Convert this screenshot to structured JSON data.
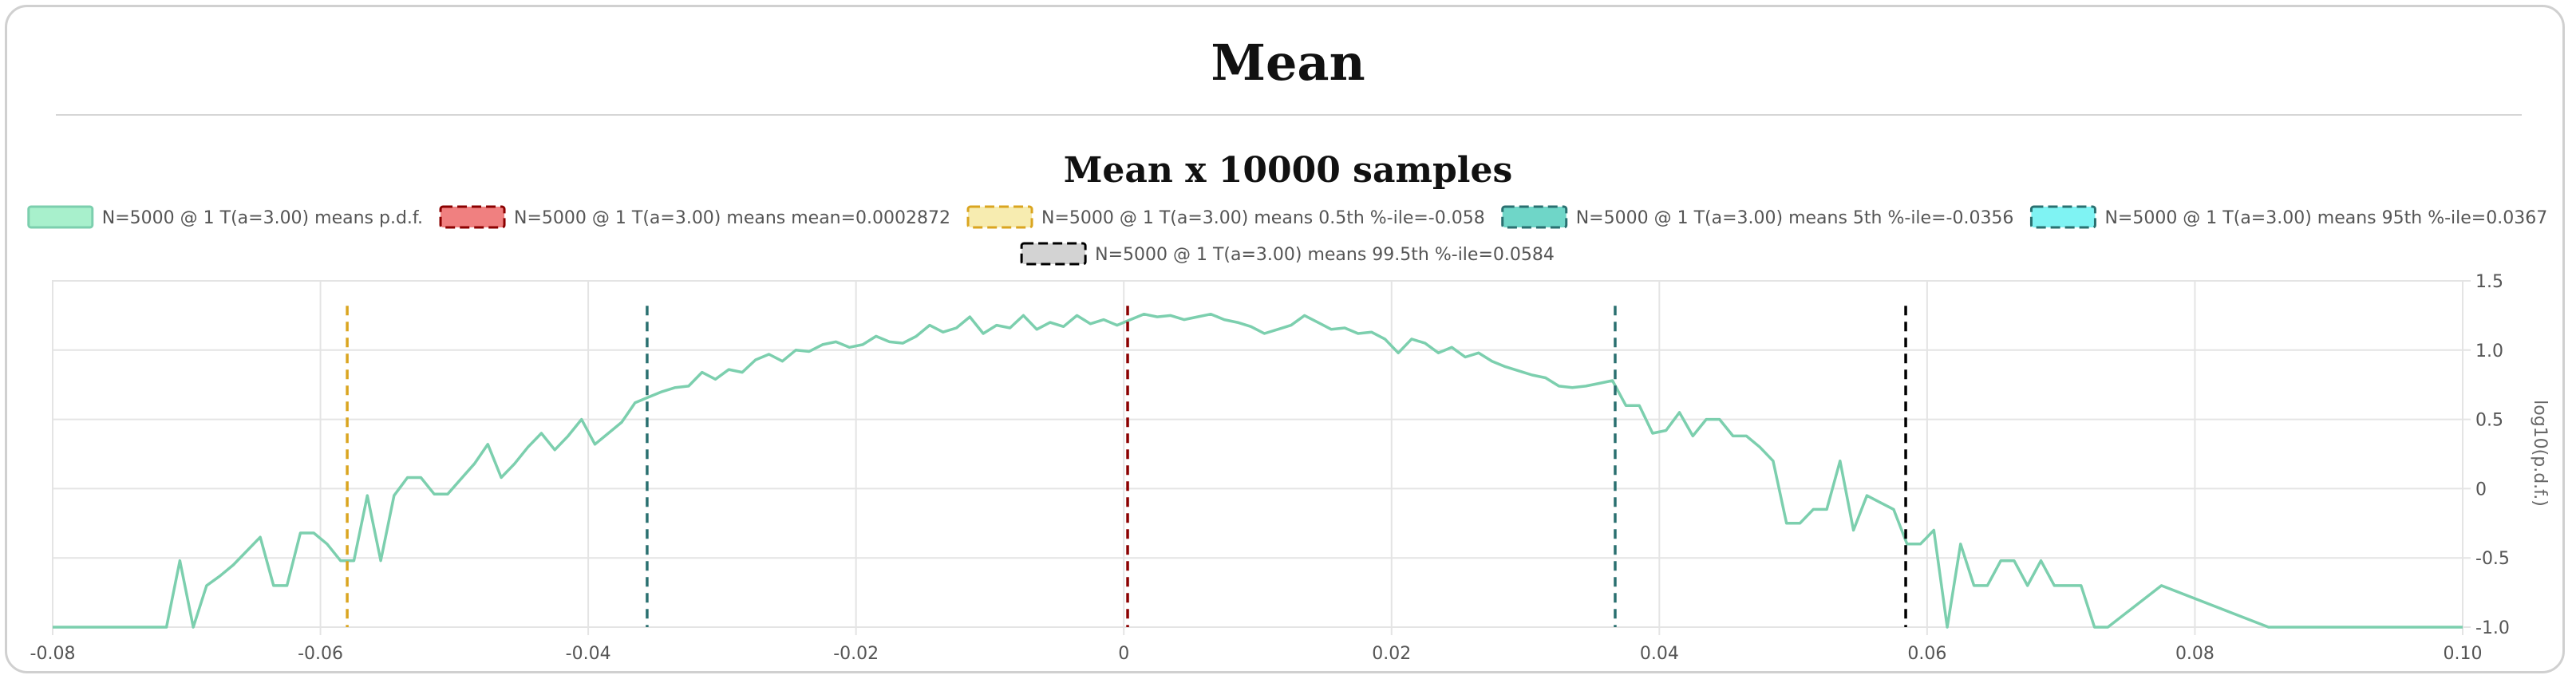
{
  "page": {
    "title": "Mean"
  },
  "chart_data": {
    "type": "line",
    "title": "Mean x 10000 samples",
    "xlabel": "",
    "ylabel": "log10(p.d.f.)",
    "xlim": [
      -0.08,
      0.1
    ],
    "ylim": [
      -1.0,
      1.5
    ],
    "x_ticks": [
      -0.08,
      -0.06,
      -0.04,
      -0.02,
      0,
      0.02,
      0.04,
      0.06,
      0.08,
      0.1
    ],
    "x_tick_labels": [
      "-0.08",
      "-0.06",
      "-0.04",
      "-0.02",
      "0",
      "0.02",
      "0.04",
      "0.06",
      "0.08",
      "0.10"
    ],
    "y_ticks": [
      -1.0,
      -0.5,
      0,
      0.5,
      1.0,
      1.5
    ],
    "y_tick_labels": [
      "-1.0",
      "-0.5",
      "0",
      "0.5",
      "1.0",
      "1.5"
    ],
    "y_axis_side": "right",
    "grid": true,
    "legend_position": "top",
    "series": [
      {
        "name": "N=5000 @ 1 T(a=3.00) means p.d.f.",
        "color": "#7ccfae",
        "fill": "#a8f0cc",
        "x": [
          -0.08,
          -0.0715,
          -0.0705,
          -0.0695,
          -0.0685,
          -0.0675,
          -0.0665,
          -0.0655,
          -0.0645,
          -0.0635,
          -0.0625,
          -0.0615,
          -0.0605,
          -0.0595,
          -0.0585,
          -0.0575,
          -0.0565,
          -0.0555,
          -0.0545,
          -0.0535,
          -0.0525,
          -0.0515,
          -0.0505,
          -0.0495,
          -0.0485,
          -0.0475,
          -0.0465,
          -0.0455,
          -0.0445,
          -0.0435,
          -0.0425,
          -0.0415,
          -0.0405,
          -0.0395,
          -0.0385,
          -0.0375,
          -0.0365,
          -0.0355,
          -0.0345,
          -0.0335,
          -0.0325,
          -0.0315,
          -0.0305,
          -0.0295,
          -0.0285,
          -0.0275,
          -0.0265,
          -0.0255,
          -0.0245,
          -0.0235,
          -0.0225,
          -0.0215,
          -0.0205,
          -0.0195,
          -0.0185,
          -0.0175,
          -0.0165,
          -0.0155,
          -0.0145,
          -0.0135,
          -0.0125,
          -0.0115,
          -0.0105,
          -0.0095,
          -0.0085,
          -0.0075,
          -0.0065,
          -0.0055,
          -0.0045,
          -0.0035,
          -0.0025,
          -0.0015,
          -0.0005,
          0.0005,
          0.0015,
          0.0025,
          0.0035,
          0.0045,
          0.0055,
          0.0065,
          0.0075,
          0.0085,
          0.0095,
          0.0105,
          0.0115,
          0.0125,
          0.0135,
          0.0145,
          0.0155,
          0.0165,
          0.0175,
          0.0185,
          0.0195,
          0.0205,
          0.0215,
          0.0225,
          0.0235,
          0.0245,
          0.0255,
          0.0265,
          0.0275,
          0.0285,
          0.0295,
          0.0305,
          0.0315,
          0.0325,
          0.0335,
          0.0345,
          0.0355,
          0.0365,
          0.0375,
          0.0385,
          0.0395,
          0.0405,
          0.0415,
          0.0425,
          0.0435,
          0.0445,
          0.0455,
          0.0465,
          0.0475,
          0.0485,
          0.0495,
          0.0505,
          0.0515,
          0.0525,
          0.0535,
          0.0545,
          0.0555,
          0.0565,
          0.0575,
          0.0585,
          0.0595,
          0.0605,
          0.0615,
          0.0625,
          0.0635,
          0.0645,
          0.0655,
          0.0665,
          0.0675,
          0.0685,
          0.0695,
          0.0705,
          0.0715,
          0.0725,
          0.0735,
          0.0775,
          0.0855,
          0.1
        ],
        "y": [
          -1.0,
          -1.0,
          -0.52,
          -1.0,
          -0.7,
          -0.63,
          -0.55,
          -0.45,
          -0.35,
          -0.7,
          -0.7,
          -0.32,
          -0.32,
          -0.4,
          -0.52,
          -0.52,
          -0.05,
          -0.52,
          -0.05,
          0.08,
          0.08,
          -0.04,
          -0.04,
          0.07,
          0.18,
          0.32,
          0.08,
          0.18,
          0.3,
          0.4,
          0.28,
          0.38,
          0.5,
          0.32,
          0.4,
          0.48,
          0.62,
          0.66,
          0.7,
          0.73,
          0.74,
          0.84,
          0.79,
          0.86,
          0.84,
          0.93,
          0.97,
          0.92,
          1.0,
          0.99,
          1.04,
          1.06,
          1.02,
          1.04,
          1.1,
          1.06,
          1.05,
          1.1,
          1.18,
          1.13,
          1.16,
          1.24,
          1.12,
          1.18,
          1.16,
          1.25,
          1.15,
          1.2,
          1.17,
          1.25,
          1.19,
          1.22,
          1.18,
          1.22,
          1.26,
          1.24,
          1.25,
          1.22,
          1.24,
          1.26,
          1.22,
          1.2,
          1.17,
          1.12,
          1.15,
          1.18,
          1.25,
          1.2,
          1.15,
          1.16,
          1.12,
          1.13,
          1.08,
          0.98,
          1.08,
          1.05,
          0.98,
          1.02,
          0.95,
          0.98,
          0.92,
          0.88,
          0.85,
          0.82,
          0.8,
          0.74,
          0.73,
          0.74,
          0.76,
          0.78,
          0.6,
          0.6,
          0.4,
          0.42,
          0.55,
          0.38,
          0.5,
          0.5,
          0.38,
          0.38,
          0.3,
          0.2,
          -0.25,
          -0.25,
          -0.15,
          -0.15,
          0.2,
          -0.3,
          -0.05,
          -0.1,
          -0.15,
          -0.4,
          -0.4,
          -0.3,
          -1.0,
          -0.4,
          -0.7,
          -0.7,
          -0.52,
          -0.52,
          -0.7,
          -0.52,
          -0.7,
          -0.7,
          -0.7,
          -1.0,
          -1.0,
          -0.7,
          -1.0,
          -1.0
        ]
      },
      {
        "name": "N=5000 @ 1 T(a=3.00) means mean=0.0002872",
        "color": "#8b0000",
        "fill": "#f08080",
        "dash": true,
        "x": [
          0.0002872
        ]
      },
      {
        "name": "N=5000 @ 1 T(a=3.00) means 0.5th %-ile=-0.058",
        "color": "#daa520",
        "fill": "#f7ecb0",
        "dash": true,
        "x": [
          -0.058
        ]
      },
      {
        "name": "N=5000 @ 1 T(a=3.00) means 5th %-ile=-0.0356",
        "color": "#2a7070",
        "fill": "#6fd6c8",
        "dash": true,
        "x": [
          -0.0356
        ]
      },
      {
        "name": "N=5000 @ 1 T(a=3.00) means 95th %-ile=0.0367",
        "color": "#2a7070",
        "fill": "#7ff3f3",
        "dash": true,
        "x": [
          0.0367
        ]
      },
      {
        "name": "N=5000 @ 1 T(a=3.00) means 99.5th %-ile=0.0584",
        "color": "#000000",
        "fill": "#d3d3d3",
        "dash": true,
        "x": [
          0.0584
        ]
      }
    ]
  }
}
